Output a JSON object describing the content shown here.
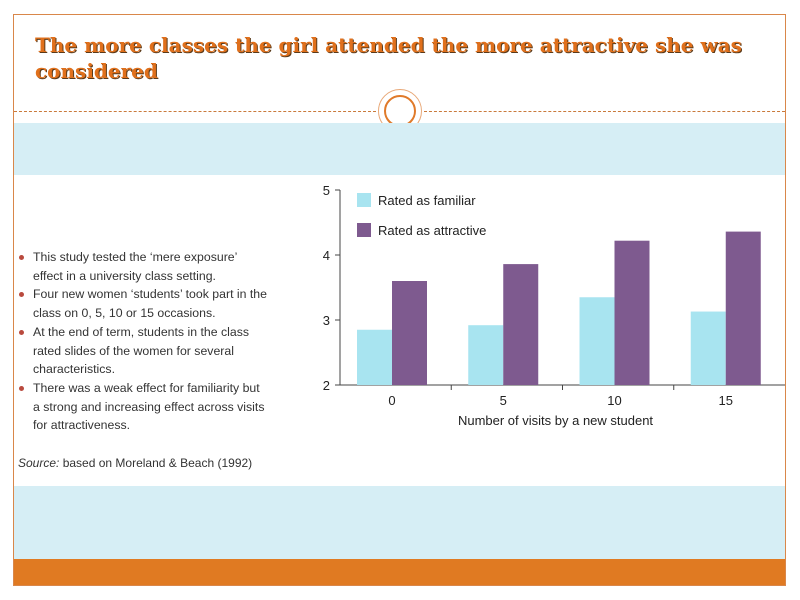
{
  "slide": {
    "title": "The more classes the girl attended the more attractive she was considered",
    "bullets": [
      "This study tested the ‘mere exposure’ effect in a university class setting.",
      "Four new women ‘students’ took part in the class on 0, 5, 10 or 15 occasions.",
      "At the end of term, students in the class rated slides of the women for several characteristics.",
      "There was a weak effect for familiarity but a strong and increasing effect across visits for attractiveness."
    ],
    "source_label": "Source:",
    "source_text": "based on Moreland & Beach (1992)",
    "colors": {
      "title": "#e0701c",
      "band": "#d6eef5",
      "accent_bar": "#e07a22"
    }
  },
  "chart_data": {
    "type": "bar",
    "categories": [
      "0",
      "5",
      "10",
      "15"
    ],
    "series": [
      {
        "name": "Rated as familiar",
        "values": [
          2.85,
          2.92,
          3.35,
          3.13
        ],
        "color": "#a8e4f0"
      },
      {
        "name": "Rated as attractive",
        "values": [
          3.6,
          3.86,
          4.22,
          4.36
        ],
        "color": "#7e5a8f"
      }
    ],
    "title": "",
    "xlabel": "Number of visits by a new student",
    "ylabel": "",
    "ylim": [
      2,
      5
    ],
    "yticks": [
      2,
      3,
      4,
      5
    ],
    "legend": "top-left",
    "grid": false
  }
}
